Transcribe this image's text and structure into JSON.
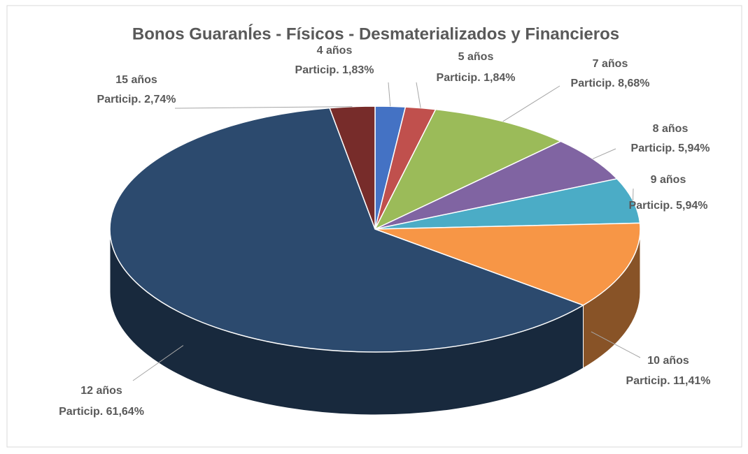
{
  "chart_data": {
    "type": "pie",
    "title": "Bonos  Guaranĺes - Físicos - Desmaterializados y Financieros",
    "categories": [
      "4 años",
      "5 años",
      "7 años",
      "8 años",
      "9 años",
      "10 años",
      "12 años",
      "15 años"
    ],
    "values": [
      1.83,
      1.84,
      8.68,
      5.94,
      5.94,
      11.41,
      61.64,
      2.74
    ],
    "value_labels": [
      "Particip. 1,83%",
      "Particip. 1,84%",
      "Particip. 8,68%",
      "Particip. 5,94%",
      "Particip. 5,94%",
      "Particip. 11,41%",
      "Particip. 61,64%",
      "Particip. 2,74%"
    ],
    "colors": [
      "#4472c4",
      "#c0504d",
      "#9bbb59",
      "#8064a2",
      "#4bacc6",
      "#f79646",
      "#2c4a6e",
      "#772c2a"
    ]
  }
}
